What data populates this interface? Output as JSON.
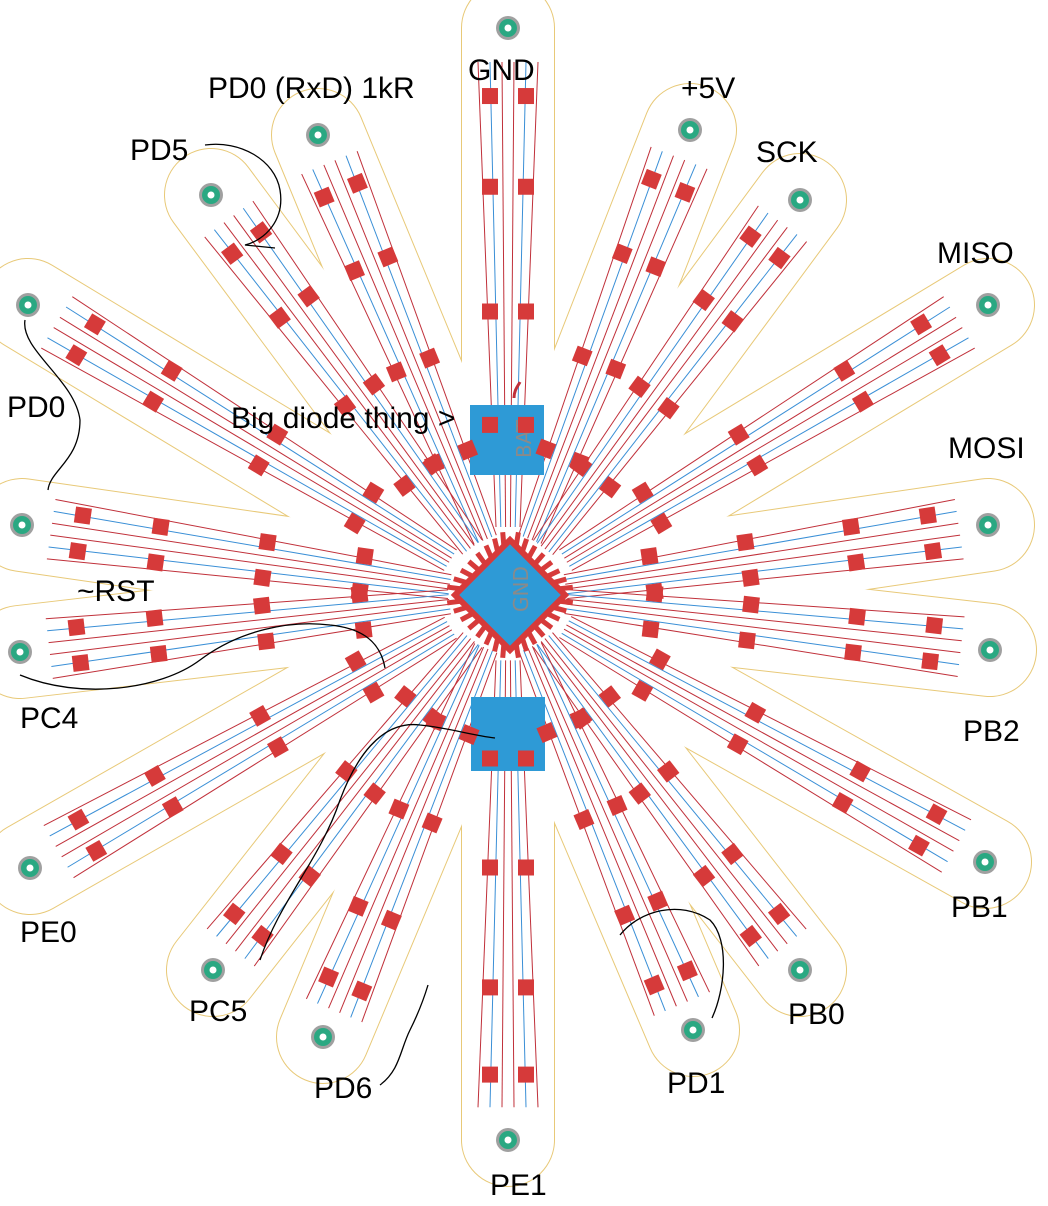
{
  "labels": {
    "gnd": "GND",
    "pd0_rxd": "PD0 (RxD) 1kR",
    "plus5v": "+5V",
    "sck": "SCK",
    "pd5": "PD5",
    "miso": "MISO",
    "pd0": "PD0",
    "big_diode": "Big diode thing >",
    "mosi": "MOSI",
    "rst": "~RST",
    "pc4": "PC4",
    "pb2": "PB2",
    "pe0": "PE0",
    "pb1": "PB1",
    "pc5": "PC5",
    "pb0": "PB0",
    "pd6": "PD6",
    "pd1": "PD1",
    "pe1": "PE1"
  },
  "chip_text": {
    "bat": "BAT",
    "gnd": "GND"
  },
  "colors": {
    "board_outline": "#e8c978",
    "pad_red": "#d63a3a",
    "trace_red": "#c0303a",
    "trace_blue": "#3a8fd6",
    "copper_fill": "#2e9ad6",
    "via_green": "#2aa882",
    "via_grey": "#a0a0a0"
  },
  "icons": {
    "via": "green-via-pad",
    "smd_pad": "red-smd-pad"
  }
}
